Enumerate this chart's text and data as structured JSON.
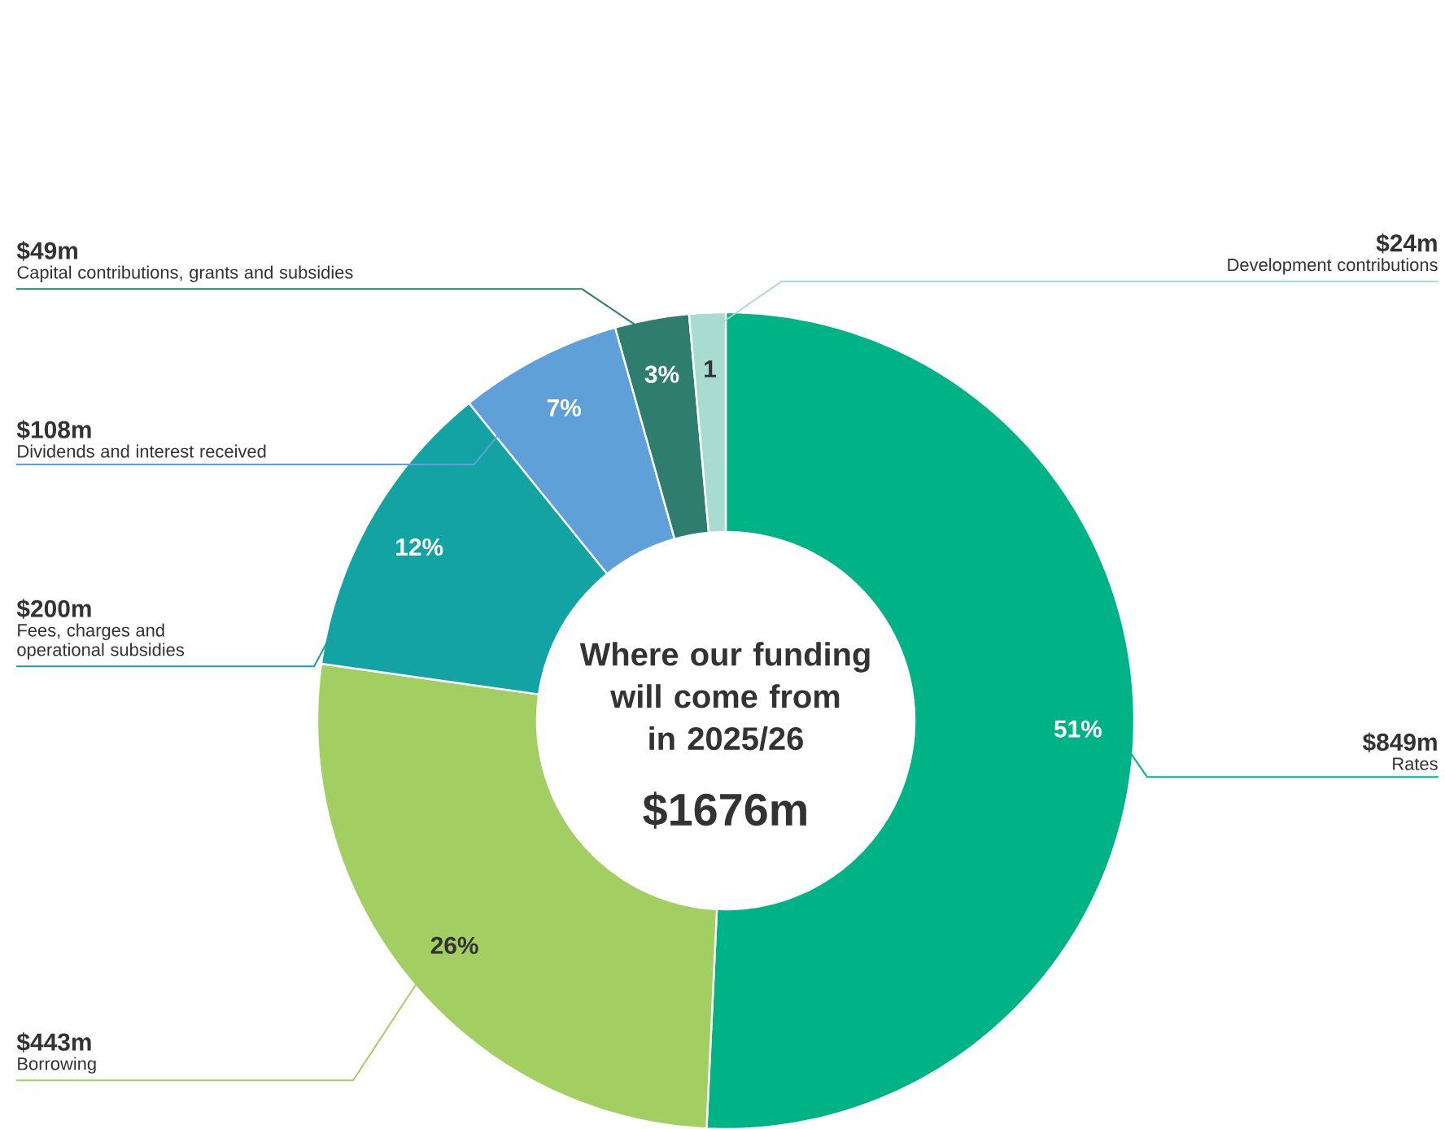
{
  "chart_data": {
    "type": "donut",
    "title": "Where our funding will come from in 2025/26",
    "subtitle": "$1676m",
    "categories": [
      "Rates",
      "Borrowing",
      "Fees, charges and operational subsidies",
      "Dividends and interest received",
      "Capital contributions, grants and subsidies",
      "Development contributions"
    ],
    "values": [
      849,
      443,
      200,
      108,
      49,
      24
    ],
    "value_labels": [
      "$849m",
      "$443m",
      "$200m",
      "$108m",
      "$49m",
      "$24m"
    ],
    "annotations": [
      "51%",
      "26%",
      "12%",
      "7%",
      "3%",
      "1"
    ],
    "colors": [
      "#00b386",
      "#a3cf62",
      "#14a3a3",
      "#5fa0d8",
      "#2e7d6e",
      "#a8dcd1"
    ]
  }
}
